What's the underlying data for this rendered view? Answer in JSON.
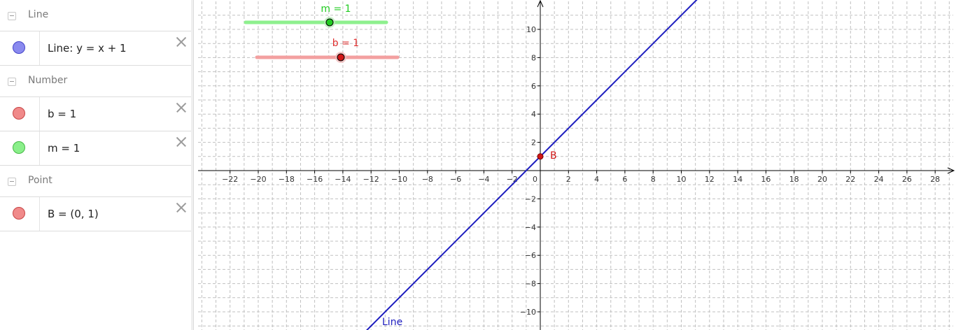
{
  "algebra": {
    "groups": [
      {
        "title": "Line",
        "items": [
          {
            "expr": "Line: y = x + 1",
            "color": "#8a8aef",
            "border": "#4545c8"
          }
        ]
      },
      {
        "title": "Number",
        "items": [
          {
            "expr": "b = 1",
            "color": "#f08a8a",
            "border": "#c84545"
          },
          {
            "expr": "m = 1",
            "color": "#8aef8a",
            "border": "#45b845"
          }
        ]
      },
      {
        "title": "Point",
        "items": [
          {
            "expr": "B = (0, 1)",
            "color": "#f08a8a",
            "border": "#c84545"
          }
        ]
      }
    ]
  },
  "graph": {
    "line": {
      "slope": 1,
      "intercept": 1,
      "label": "Line",
      "color": "#1d1dbf"
    },
    "point": {
      "x": 0,
      "y": 1,
      "label": "B",
      "color": "#d11717"
    },
    "x_ticks": [
      "−22",
      "−20",
      "−18",
      "−16",
      "−14",
      "−12",
      "−10",
      "−8",
      "−6",
      "−4",
      "−2",
      "0",
      "2",
      "4",
      "6",
      "8",
      "10",
      "12",
      "14",
      "16",
      "18",
      "20",
      "22",
      "24",
      "26",
      "28"
    ],
    "y_ticks": [
      "10",
      "8",
      "6",
      "4",
      "2",
      "−2",
      "−4",
      "−6",
      "−8",
      "−10"
    ],
    "sliders": [
      {
        "label": "m = 1",
        "color": "#22cc22",
        "value": 1,
        "min": -5,
        "max": 5
      },
      {
        "label": "b = 1",
        "color": "#e03030",
        "value": 1,
        "min": -5,
        "max": 5
      }
    ]
  }
}
